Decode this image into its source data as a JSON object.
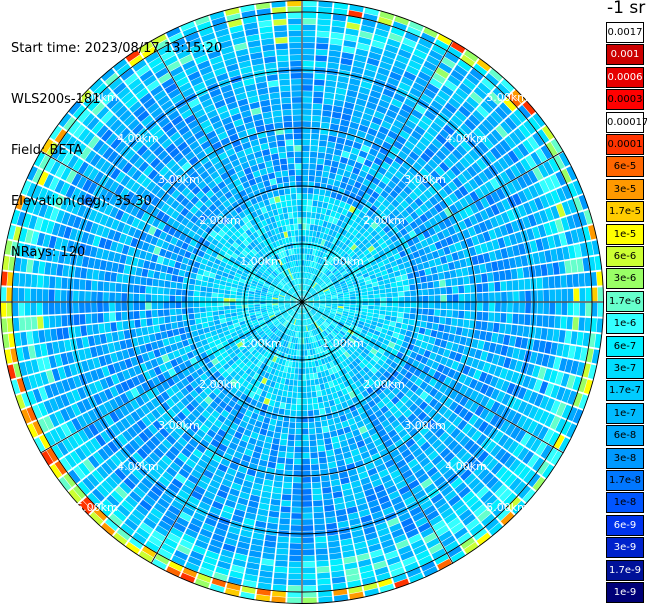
{
  "header": {
    "start_time": "Start time: 2023/08/17 13:15:20",
    "instrument": "WLS200s-181",
    "field": "Field: BETA",
    "elevation": "Elevation(deg): 35.30",
    "nrays": "NRays: 120"
  },
  "colorbar": {
    "unit": "-1 sr",
    "labels": [
      "0.0017",
      "0.001",
      "0.0006",
      "0.0003",
      "0.00017",
      "0.0001",
      "6e-5",
      "3e-5",
      "1.7e-5",
      "1e-5",
      "6e-6",
      "3e-6",
      "1.7e-6",
      "1e-6",
      "6e-7",
      "3e-7",
      "1.7e-7",
      "1e-7",
      "6e-8",
      "3e-8",
      "1.7e-8",
      "1e-8",
      "6e-9",
      "3e-9",
      "1.7e-9",
      "1e-9"
    ],
    "colors": [
      "#ffffff",
      "#cc0000",
      "#e60000",
      "#ff0000",
      "#ffffff",
      "#ff3300",
      "#ff6600",
      "#ff9900",
      "#ffcc00",
      "#ffff00",
      "#ccff33",
      "#99ff66",
      "#66ffcc",
      "#33ffff",
      "#00eeff",
      "#00ddff",
      "#00ccff",
      "#00bbff",
      "#00aaff",
      "#0099ff",
      "#0077ff",
      "#0055ff",
      "#0033ee",
      "#0022cc",
      "#001199",
      "#000077"
    ]
  },
  "chart_data": {
    "type": "heatmap",
    "title": "",
    "field": "BETA",
    "units": "sr-1",
    "nrays": 120,
    "elevation_deg": 35.3,
    "range_rings_km": [
      1,
      2,
      3,
      4,
      5
    ],
    "ring_labels": [
      "1.00km",
      "2.00km",
      "3.00km",
      "4.00km",
      "5.00km"
    ],
    "radial_spokes_deg": [
      0,
      30,
      60,
      90,
      120,
      150,
      180,
      210,
      240,
      270,
      300,
      330
    ],
    "typical_value_near": "3e-7",
    "typical_value_far": "1e-8",
    "edge_values_range": [
      "1e-6",
      "6e-5"
    ]
  }
}
